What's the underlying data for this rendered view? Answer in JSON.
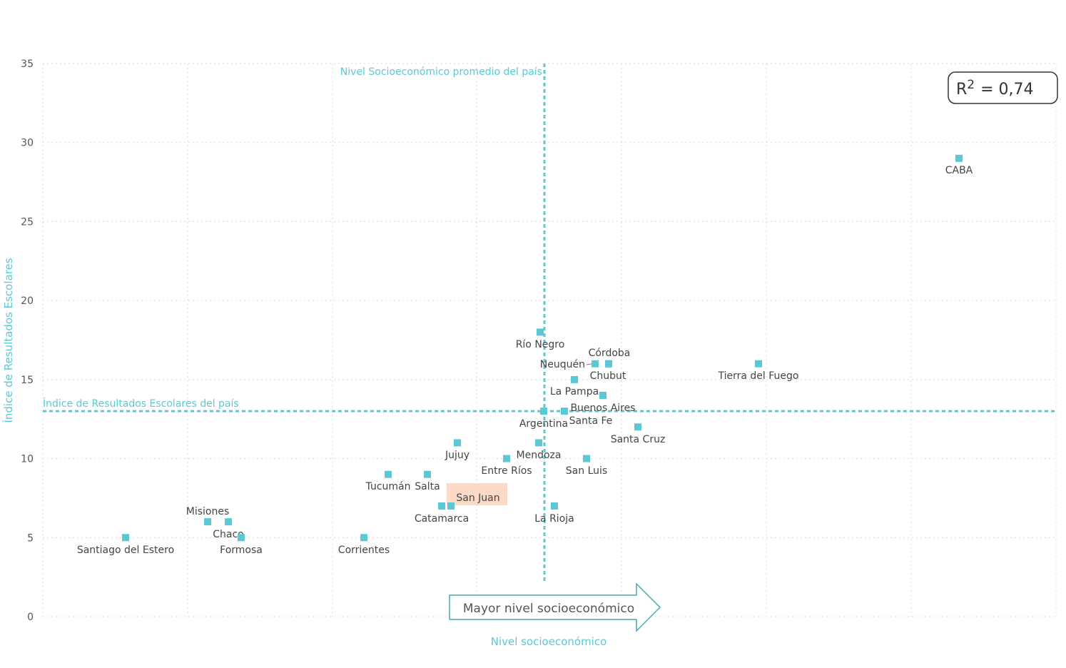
{
  "chart_data": {
    "type": "scatter",
    "xlabel": "Nivel socioeconómico",
    "ylabel": "Índice de Resultados Escolares",
    "ylim": [
      0,
      35
    ],
    "yticks": [
      0,
      5,
      10,
      15,
      20,
      25,
      30,
      35
    ],
    "grid": true,
    "reference_lines": {
      "vertical_label": "Nivel Socioeconómico promedio del país",
      "horizontal_label": "Índice de Resultados Escolares del país",
      "horizontal_y": 13
    },
    "r2_label": "R",
    "r2_exp": "2",
    "r2_value": "= 0,74",
    "arrow_label": "Mayor nivel socioeconómico",
    "highlight": "San Juan",
    "points": [
      {
        "name": "Santiago del Estero",
        "y": 5
      },
      {
        "name": "Misiones",
        "y": 6
      },
      {
        "name": "Chaco",
        "y": 6
      },
      {
        "name": "Formosa",
        "y": 5
      },
      {
        "name": "Corrientes",
        "y": 5
      },
      {
        "name": "Tucumán",
        "y": 9
      },
      {
        "name": "Salta",
        "y": 9
      },
      {
        "name": "Catamarca",
        "y": 7
      },
      {
        "name": "San Juan",
        "y": 7
      },
      {
        "name": "Jujuy",
        "y": 11
      },
      {
        "name": "Entre Ríos",
        "y": 10
      },
      {
        "name": "Mendoza",
        "y": 11
      },
      {
        "name": "Río Negro",
        "y": 18
      },
      {
        "name": "Argentina",
        "y": 13
      },
      {
        "name": "La Rioja",
        "y": 7
      },
      {
        "name": "Santa Fe",
        "y": 13
      },
      {
        "name": "La Pampa",
        "y": 15
      },
      {
        "name": "San Luis",
        "y": 10
      },
      {
        "name": "Neuquén",
        "y": 16
      },
      {
        "name": "Buenos Aires",
        "y": 14
      },
      {
        "name": "Córdoba",
        "y": 16
      },
      {
        "name": "Chubut",
        "y": 16
      },
      {
        "name": "Santa Cruz",
        "y": 12
      },
      {
        "name": "Tierra del Fuego",
        "y": 16
      },
      {
        "name": "CABA",
        "y": 29
      }
    ]
  }
}
